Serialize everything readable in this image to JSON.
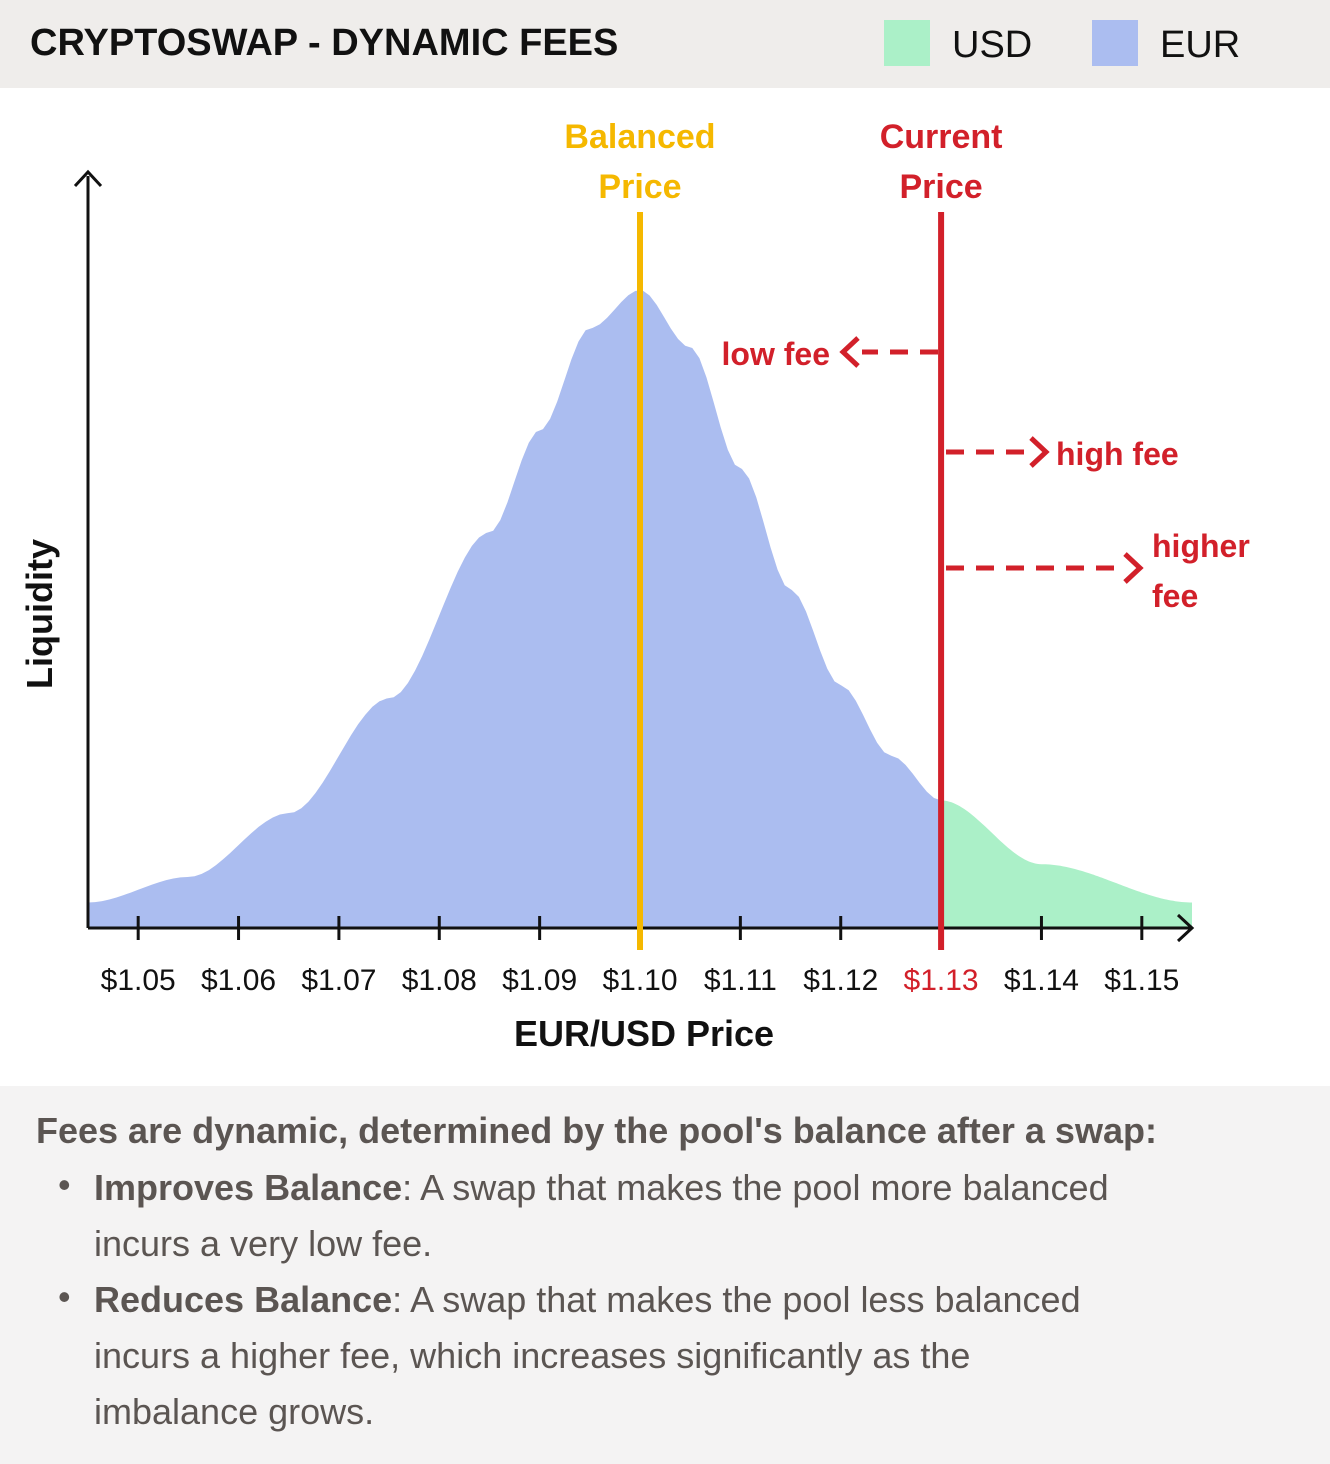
{
  "header": {
    "title": "CRYPTOSWAP - DYNAMIC FEES",
    "legend": [
      {
        "label": "USD",
        "color": "#abf0c8"
      },
      {
        "label": "EUR",
        "color": "#abbdf0"
      }
    ]
  },
  "chart_data": {
    "type": "area",
    "xlabel": "EUR/USD Price",
    "ylabel": "Liquidity",
    "x_ticks": [
      "$1.05",
      "$1.06",
      "$1.07",
      "$1.08",
      "$1.09",
      "$1.10",
      "$1.11",
      "$1.12",
      "$1.13",
      "$1.14",
      "$1.15"
    ],
    "xlim": [
      1.045,
      1.155
    ],
    "curve": {
      "x": [
        1.045,
        1.055,
        1.065,
        1.075,
        1.085,
        1.09,
        1.095,
        1.1,
        1.105,
        1.11,
        1.115,
        1.12,
        1.125,
        1.13,
        1.14,
        1.155
      ],
      "y": [
        0.04,
        0.08,
        0.18,
        0.36,
        0.62,
        0.78,
        0.94,
        1.0,
        0.91,
        0.72,
        0.53,
        0.38,
        0.27,
        0.2,
        0.1,
        0.04
      ]
    },
    "series": [
      {
        "name": "EUR",
        "range": [
          1.045,
          1.13
        ],
        "color": "#abbdf0"
      },
      {
        "name": "USD",
        "range": [
          1.13,
          1.155
        ],
        "color": "#abf0c8"
      }
    ],
    "balanced_price": {
      "value": 1.1,
      "label_line1": "Balanced",
      "label_line2": "Price",
      "color": "#f5b800"
    },
    "current_price": {
      "value": 1.13,
      "label_line1": "Current",
      "label_line2": "Price",
      "color": "#d2202a",
      "tick_label": "$1.13"
    },
    "annotations": [
      {
        "text": "low fee",
        "direction": "left"
      },
      {
        "text": "high fee",
        "direction": "right"
      },
      {
        "text_line1": "higher",
        "text_line2": "fee",
        "direction": "right"
      }
    ]
  },
  "explanation": {
    "intro": "Fees are dynamic, determined by the pool's balance after a swap:",
    "bullets": [
      {
        "bold": "Improves Balance",
        "text": ": A swap that makes the pool more balanced",
        "text2": "incurs a very low fee."
      },
      {
        "bold": "Reduces Balance",
        "text": ": A swap that makes the pool less balanced",
        "text2": "incurs a higher fee, which increases significantly as the",
        "text3": "imbalance grows."
      }
    ]
  }
}
